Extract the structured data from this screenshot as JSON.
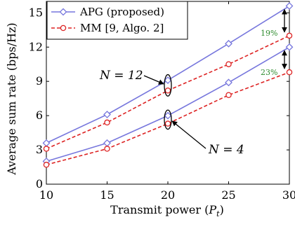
{
  "chart_data": {
    "type": "line",
    "xlabel": "Transmit power (P_t)",
    "xlabel_main": "Transmit power (",
    "xlabel_var": "P",
    "xlabel_sub": "t",
    "xlabel_close": ")",
    "ylabel": "Average sum rate (bps/Hz)",
    "x": [
      10,
      15,
      20,
      25,
      30
    ],
    "xlim": [
      10,
      30
    ],
    "ylim": [
      0,
      16
    ],
    "xticks": [
      10,
      15,
      20,
      25,
      30
    ],
    "yticks": [
      0,
      3,
      6,
      9,
      12,
      15
    ],
    "grid": false,
    "legend_position": "top-left",
    "colors": {
      "apg": "#7777dd",
      "mm": "#dd2222",
      "pct": "#2e8b2e"
    },
    "series": [
      {
        "name": "APG (proposed)",
        "group": "N = 12",
        "style": "apg",
        "values": [
          3.6,
          6.1,
          9.1,
          12.3,
          15.6
        ]
      },
      {
        "name": "MM [9, Algo. 2]",
        "group": "N = 12",
        "style": "mm",
        "values": [
          3.1,
          5.4,
          8.2,
          10.5,
          13.0
        ]
      },
      {
        "name": "APG (proposed)",
        "group": "N = 4",
        "style": "apg",
        "values": [
          2.0,
          3.6,
          6.0,
          8.9,
          12.0
        ]
      },
      {
        "name": "MM [9, Algo. 2]",
        "group": "N = 4",
        "style": "mm",
        "values": [
          1.7,
          3.1,
          5.3,
          7.8,
          9.8
        ]
      }
    ],
    "legend": [
      {
        "label": "APG (proposed)",
        "style": "apg"
      },
      {
        "label": "MM [9, Algo. 2]",
        "style": "mm"
      }
    ],
    "annotations": {
      "n12_label": "N = 12",
      "n4_label": "N = 4",
      "gain_n12": "19%",
      "gain_n4": "23%"
    }
  }
}
